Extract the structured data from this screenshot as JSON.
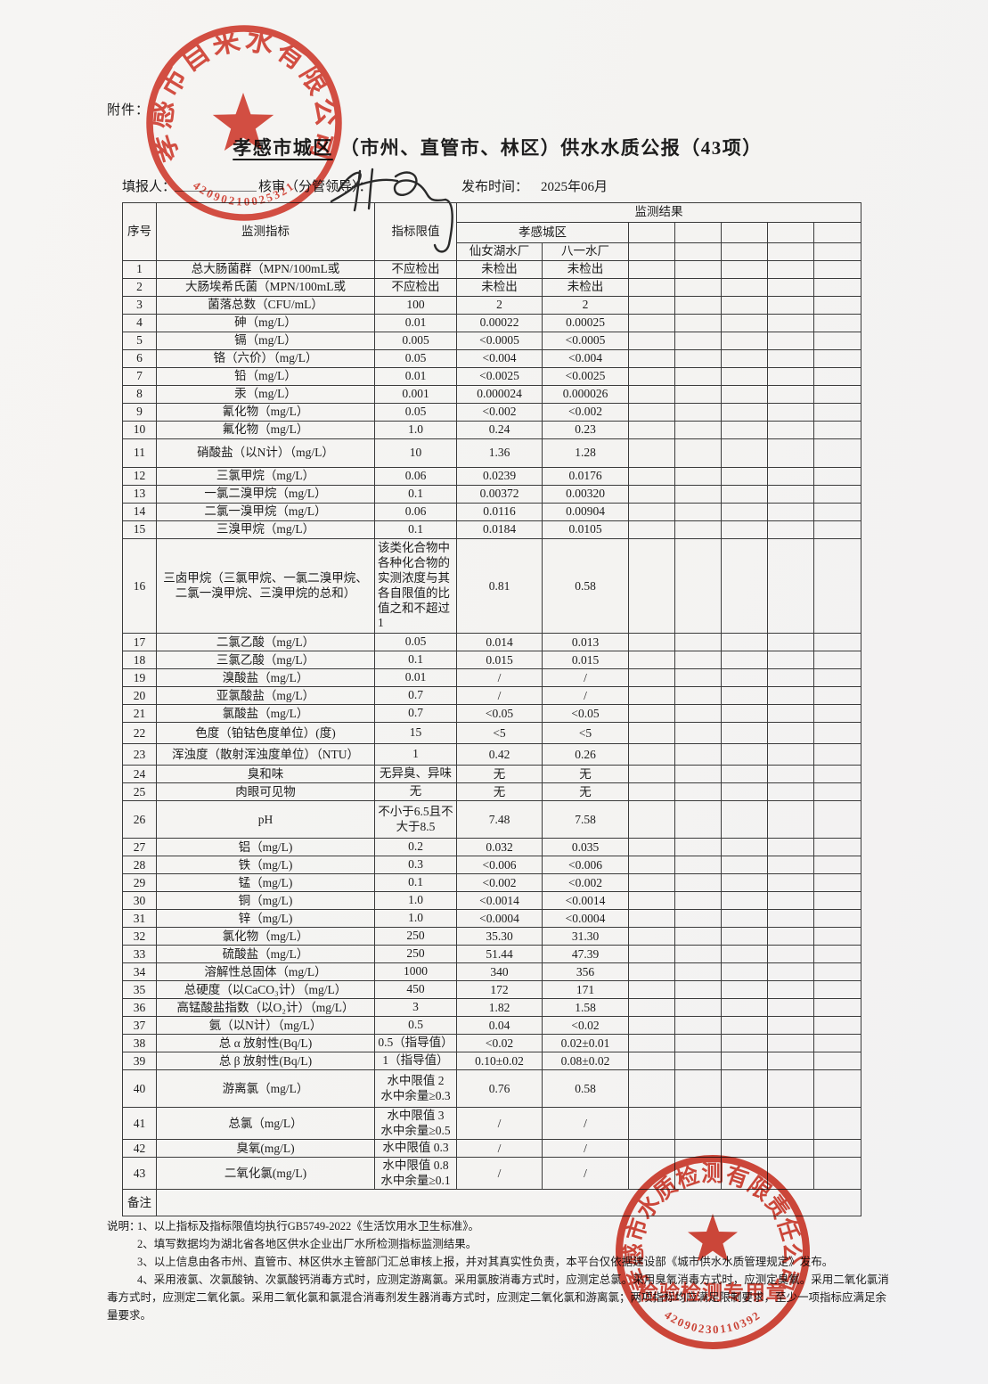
{
  "page": {
    "attachment_label": "附件：",
    "title_underlined": "孝感市城区",
    "title_rest": "（市州、直管市、林区）供水水质公报（43项）",
    "filler_label": "填报人：",
    "reviewer_label": "核审（分管领导）：",
    "publish_label": "发布时间：",
    "publish_value": "2025年06月"
  },
  "table": {
    "headers": {
      "seq": "序号",
      "indicator": "监测指标",
      "limit": "指标限值",
      "results": "监测结果",
      "region": "孝感城区",
      "plants": [
        "仙女湖水厂",
        "八一水厂"
      ]
    },
    "remark_label": "备注",
    "rows": [
      {
        "no": "1",
        "indicator": "总大肠菌群（MPN/100mL或",
        "limit": "不应检出",
        "values": [
          "未检出",
          "未检出"
        ]
      },
      {
        "no": "2",
        "indicator": "大肠埃希氏菌（MPN/100mL或",
        "limit": "不应检出",
        "values": [
          "未检出",
          "未检出"
        ]
      },
      {
        "no": "3",
        "indicator": "菌落总数（CFU/mL）",
        "limit": "100",
        "values": [
          "2",
          "2"
        ]
      },
      {
        "no": "4",
        "indicator": "砷（mg/L）",
        "limit": "0.01",
        "values": [
          "0.00022",
          "0.00025"
        ]
      },
      {
        "no": "5",
        "indicator": "镉（mg/L）",
        "limit": "0.005",
        "values": [
          "<0.0005",
          "<0.0005"
        ]
      },
      {
        "no": "6",
        "indicator": "铬（六价）（mg/L）",
        "limit": "0.05",
        "values": [
          "<0.004",
          "<0.004"
        ]
      },
      {
        "no": "7",
        "indicator": "铅（mg/L）",
        "limit": "0.01",
        "values": [
          "<0.0025",
          "<0.0025"
        ]
      },
      {
        "no": "8",
        "indicator": "汞（mg/L）",
        "limit": "0.001",
        "values": [
          "0.000024",
          "0.000026"
        ]
      },
      {
        "no": "9",
        "indicator": "氰化物（mg/L）",
        "limit": "0.05",
        "values": [
          "<0.002",
          "<0.002"
        ]
      },
      {
        "no": "10",
        "indicator": "氟化物（mg/L）",
        "limit": "1.0",
        "values": [
          "0.24",
          "0.23"
        ]
      },
      {
        "no": "11",
        "indicator": "硝酸盐（以N计）（mg/L）",
        "limit": "10",
        "values": [
          "1.36",
          "1.28"
        ]
      },
      {
        "no": "12",
        "indicator": "三氯甲烷（mg/L）",
        "limit": "0.06",
        "values": [
          "0.0239",
          "0.0176"
        ]
      },
      {
        "no": "13",
        "indicator": "一氯二溴甲烷（mg/L）",
        "limit": "0.1",
        "values": [
          "0.00372",
          "0.00320"
        ]
      },
      {
        "no": "14",
        "indicator": "二氯一溴甲烷（mg/L）",
        "limit": "0.06",
        "values": [
          "0.0116",
          "0.00904"
        ]
      },
      {
        "no": "15",
        "indicator": "三溴甲烷（mg/L）",
        "limit": "0.1",
        "values": [
          "0.0184",
          "0.0105"
        ]
      },
      {
        "no": "16",
        "indicator": "三卤甲烷（三氯甲烷、一氯二溴甲烷、二氯一溴甲烷、三溴甲烷的总和）",
        "limit": "该类化合物中各种化合物的实测浓度与其各自限值的比值之和不超过1",
        "values": [
          "0.81",
          "0.58"
        ]
      },
      {
        "no": "17",
        "indicator": "二氯乙酸（mg/L）",
        "limit": "0.05",
        "values": [
          "0.014",
          "0.013"
        ]
      },
      {
        "no": "18",
        "indicator": "三氯乙酸（mg/L）",
        "limit": "0.1",
        "values": [
          "0.015",
          "0.015"
        ]
      },
      {
        "no": "19",
        "indicator": "溴酸盐（mg/L）",
        "limit": "0.01",
        "values": [
          "/",
          "/"
        ]
      },
      {
        "no": "20",
        "indicator": "亚氯酸盐（mg/L）",
        "limit": "0.7",
        "values": [
          "/",
          "/"
        ]
      },
      {
        "no": "21",
        "indicator": "氯酸盐（mg/L）",
        "limit": "0.7",
        "values": [
          "<0.05",
          "<0.05"
        ]
      },
      {
        "no": "22",
        "indicator": "色度（铂钴色度单位）(度)",
        "limit": "15",
        "values": [
          "<5",
          "<5"
        ]
      },
      {
        "no": "23",
        "indicator": "浑浊度（散射浑浊度单位）（NTU）",
        "limit": "1",
        "values": [
          "0.42",
          "0.26"
        ]
      },
      {
        "no": "24",
        "indicator": "臭和味",
        "limit": "无异臭、异味",
        "values": [
          "无",
          "无"
        ]
      },
      {
        "no": "25",
        "indicator": "肉眼可见物",
        "limit": "无",
        "values": [
          "无",
          "无"
        ]
      },
      {
        "no": "26",
        "indicator": "pH",
        "limit": [
          "不小于6.5且不",
          "大于8.5"
        ],
        "values": [
          "7.48",
          "7.58"
        ]
      },
      {
        "no": "27",
        "indicator": "铝（mg/L)",
        "limit": "0.2",
        "values": [
          "0.032",
          "0.035"
        ]
      },
      {
        "no": "28",
        "indicator": "铁（mg/L)",
        "limit": "0.3",
        "values": [
          "<0.006",
          "<0.006"
        ]
      },
      {
        "no": "29",
        "indicator": "锰（mg/L)",
        "limit": "0.1",
        "values": [
          "<0.002",
          "<0.002"
        ]
      },
      {
        "no": "30",
        "indicator": "铜（mg/L)",
        "limit": "1.0",
        "values": [
          "<0.0014",
          "<0.0014"
        ]
      },
      {
        "no": "31",
        "indicator": "锌（mg/L)",
        "limit": "1.0",
        "values": [
          "<0.0004",
          "<0.0004"
        ]
      },
      {
        "no": "32",
        "indicator": "氯化物（mg/L）",
        "limit": "250",
        "values": [
          "35.30",
          "31.30"
        ]
      },
      {
        "no": "33",
        "indicator": "硫酸盐（mg/L）",
        "limit": "250",
        "values": [
          "51.44",
          "47.39"
        ]
      },
      {
        "no": "34",
        "indicator": "溶解性总固体（mg/L）",
        "limit": "1000",
        "values": [
          "340",
          "356"
        ]
      },
      {
        "no": "35",
        "indicator": "总硬度（以CaCO₃计）（mg/L）",
        "limit": "450",
        "values": [
          "172",
          "171"
        ]
      },
      {
        "no": "36",
        "indicator": "高锰酸盐指数（以O₂计）（mg/L）",
        "limit": "3",
        "values": [
          "1.82",
          "1.58"
        ]
      },
      {
        "no": "37",
        "indicator": "氨（以N计）（mg/L）",
        "limit": "0.5",
        "values": [
          "0.04",
          "<0.02"
        ]
      },
      {
        "no": "38",
        "indicator": "总 α 放射性(Bq/L)",
        "limit": "0.5（指导值）",
        "values": [
          "<0.02",
          "0.02±0.01"
        ]
      },
      {
        "no": "39",
        "indicator": "总 β 放射性(Bq/L)",
        "limit": "1（指导值）",
        "values": [
          "0.10±0.02",
          "0.08±0.02"
        ]
      },
      {
        "no": "40",
        "indicator": "游离氯（mg/L）",
        "limit": [
          "水中限值 2",
          "水中余量≥0.3"
        ],
        "values": [
          "0.76",
          "0.58"
        ]
      },
      {
        "no": "41",
        "indicator": "总氯（mg/L）",
        "limit": [
          "水中限值 3",
          "水中余量≥0.5"
        ],
        "values": [
          "/",
          "/"
        ]
      },
      {
        "no": "42",
        "indicator": "臭氧(mg/L)",
        "limit": "水中限值 0.3",
        "values": [
          "/",
          "/"
        ]
      },
      {
        "no": "43",
        "indicator": "二氧化氯(mg/L)",
        "limit": [
          "水中限值 0.8",
          "水中余量≥0.1"
        ],
        "values": [
          "/",
          "/"
        ]
      }
    ]
  },
  "notes": {
    "label": "说明：",
    "items": [
      "1、以上指标及指标限值均执行GB5749-2022《生活饮用水卫生标准》。",
      "2、填写数据均为湖北省各地区供水企业出厂水所检测指标监测结果。",
      "3、以上信息由各市州、直管市、林区供水主管部门汇总审核上报，并对其真实性负责，本平台仅依据建设部《城市供水水质管理规定》发布。",
      "4、采用液氯、次氯酸钠、次氯酸钙消毒方式时，应测定游离氯。采用氯胺消毒方式时，应测定总氯。采用臭氧消毒方式时，应测定臭氧。采用二氧化氯消毒方式时，应测定二氧化氯。采用二氧化氯和氯混合消毒剂发生器消毒方式时，应测定二氧化氯和游离氯；两项指标均应满足限制要求，至少一项指标应满足余量要求。"
    ]
  },
  "stamps": {
    "top": {
      "company": "孝感市自来水有限公司",
      "number": "42090210025321"
    },
    "bottom": {
      "company": "孝感市水质检测有限责任公司",
      "title": "检验检测专用章",
      "number": "42090230110392"
    }
  },
  "colors": {
    "stamp_red": "#d6392b",
    "stamp_red_deep": "#cf2f21",
    "paper": "#f4f3f1",
    "ink": "#1c1c1c",
    "table_line": "#3b3b3b"
  }
}
